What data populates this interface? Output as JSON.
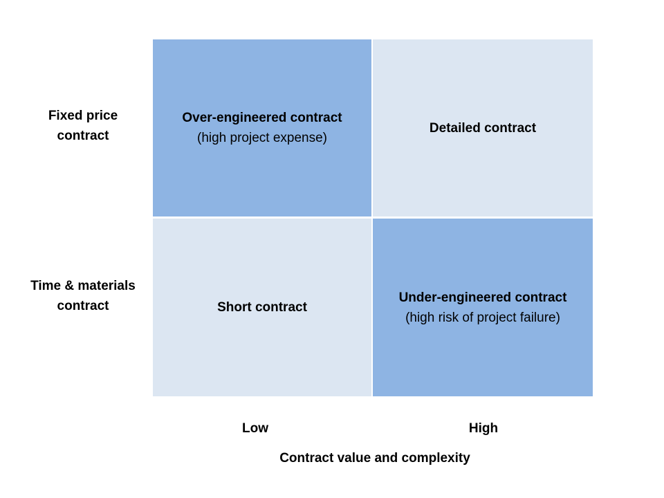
{
  "colors": {
    "dark_cell": "#8EB4E3",
    "light_cell": "#DCE6F2"
  },
  "rows": [
    {
      "label_lines": [
        "Fixed price",
        "contract"
      ]
    },
    {
      "label_lines": [
        "Time & materials",
        "contract"
      ]
    }
  ],
  "columns": [
    "Low",
    "High"
  ],
  "x_axis_title": "Contract value and complexity",
  "cells": [
    {
      "title": "Over-engineered contract",
      "subtitle": "(high project expense)",
      "shade": "dark"
    },
    {
      "title": "Detailed contract",
      "subtitle": "",
      "shade": "light"
    },
    {
      "title": "Short contract",
      "subtitle": "",
      "shade": "light"
    },
    {
      "title": "Under-engineered contract",
      "subtitle": "(high risk of project failure)",
      "shade": "dark"
    }
  ]
}
